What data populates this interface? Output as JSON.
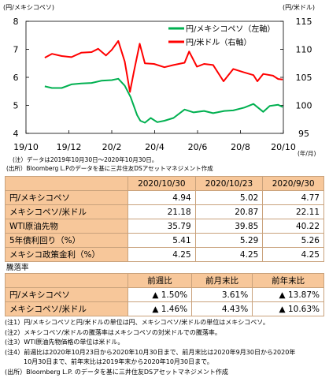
{
  "chart_data": {
    "type": "line",
    "ylabel_left": "(円/メキシコペソ)",
    "ylabel_right": "(円/米ドル)",
    "xlabel": "(年/月)",
    "x_ticks": [
      "19/10",
      "19/12",
      "20/2",
      "20/4",
      "20/6",
      "20/8",
      "20/10"
    ],
    "x_range": [
      "2019-10-01",
      "2020-10-31"
    ],
    "y_left_ticks": [
      "8",
      "7",
      "6",
      "5",
      "4"
    ],
    "y_left_range": [
      4,
      8
    ],
    "y_right_ticks": [
      "115",
      "110",
      "105",
      "100",
      "95"
    ],
    "y_right_range": [
      95,
      115
    ],
    "grid": false,
    "legend": "top-right",
    "series": [
      {
        "name": "円/メキシコペソ（左軸）",
        "axis": "left",
        "color": "#00b050",
        "points": [
          [
            "2019-10-30",
            5.68
          ],
          [
            "2019-11-10",
            5.62
          ],
          [
            "2019-11-25",
            5.62
          ],
          [
            "2019-12-10",
            5.75
          ],
          [
            "2019-12-25",
            5.78
          ],
          [
            "2020-01-10",
            5.8
          ],
          [
            "2020-01-25",
            5.88
          ],
          [
            "2020-02-10",
            5.9
          ],
          [
            "2020-02-20",
            5.95
          ],
          [
            "2020-03-01",
            5.7
          ],
          [
            "2020-03-10",
            5.3
          ],
          [
            "2020-03-20",
            4.65
          ],
          [
            "2020-03-25",
            4.45
          ],
          [
            "2020-04-01",
            4.38
          ],
          [
            "2020-04-10",
            4.55
          ],
          [
            "2020-04-20",
            4.4
          ],
          [
            "2020-05-01",
            4.45
          ],
          [
            "2020-05-15",
            4.55
          ],
          [
            "2020-06-01",
            4.85
          ],
          [
            "2020-06-15",
            4.75
          ],
          [
            "2020-07-01",
            4.8
          ],
          [
            "2020-07-15",
            4.72
          ],
          [
            "2020-08-01",
            4.8
          ],
          [
            "2020-08-15",
            4.82
          ],
          [
            "2020-09-01",
            4.92
          ],
          [
            "2020-09-15",
            5.05
          ],
          [
            "2020-09-30",
            4.77
          ],
          [
            "2020-10-10",
            4.98
          ],
          [
            "2020-10-23",
            5.02
          ],
          [
            "2020-10-30",
            4.94
          ]
        ]
      },
      {
        "name": "円/米ドル（右軸）",
        "axis": "right",
        "color": "#ff0000",
        "points": [
          [
            "2019-10-30",
            108.5
          ],
          [
            "2019-11-10",
            109.2
          ],
          [
            "2019-11-25",
            108.8
          ],
          [
            "2019-12-10",
            108.6
          ],
          [
            "2019-12-25",
            109.4
          ],
          [
            "2020-01-10",
            109.5
          ],
          [
            "2020-01-20",
            110.1
          ],
          [
            "2020-02-01",
            108.9
          ],
          [
            "2020-02-10",
            109.9
          ],
          [
            "2020-02-20",
            111.5
          ],
          [
            "2020-03-01",
            107.8
          ],
          [
            "2020-03-09",
            102.4
          ],
          [
            "2020-03-15",
            106.0
          ],
          [
            "2020-03-24",
            111.0
          ],
          [
            "2020-04-01",
            107.5
          ],
          [
            "2020-04-15",
            107.4
          ],
          [
            "2020-05-01",
            106.8
          ],
          [
            "2020-05-15",
            107.2
          ],
          [
            "2020-06-01",
            107.6
          ],
          [
            "2020-06-08",
            109.6
          ],
          [
            "2020-06-20",
            106.9
          ],
          [
            "2020-07-01",
            107.4
          ],
          [
            "2020-07-15",
            107.2
          ],
          [
            "2020-07-31",
            104.3
          ],
          [
            "2020-08-15",
            106.5
          ],
          [
            "2020-08-31",
            105.9
          ],
          [
            "2020-09-15",
            105.4
          ],
          [
            "2020-09-21",
            104.3
          ],
          [
            "2020-09-30",
            105.6
          ],
          [
            "2020-10-15",
            105.3
          ],
          [
            "2020-10-23",
            104.7
          ],
          [
            "2020-10-30",
            104.6
          ]
        ]
      }
    ]
  },
  "chart_notes": {
    "note": "(注）データは2019年10月30日～2020年10月30日。",
    "source": "(出所）Bloomberg L.Pのデータを基に三井住友DSアセットマネジメント作成"
  },
  "table1": {
    "headers": [
      "",
      "2020/10/30",
      "2020/10/23",
      "2020/9/30"
    ],
    "rows": [
      {
        "label": "円/メキシコペソ",
        "values": [
          "4.94",
          "5.02",
          "4.77"
        ]
      },
      {
        "label": "メキシコペソ/米ドル",
        "values": [
          "21.18",
          "20.87",
          "22.11"
        ]
      },
      {
        "label": "WTI原油先物",
        "values": [
          "35.79",
          "39.85",
          "40.22"
        ]
      },
      {
        "label": "5年債利回り（%）",
        "values": [
          "5.41",
          "5.29",
          "5.26"
        ]
      },
      {
        "label": "メキシコ政策金利（%）",
        "values": [
          "4.25",
          "4.25",
          "4.25"
        ]
      }
    ]
  },
  "section_title": "騰落率",
  "table2": {
    "headers": [
      "",
      "前週比",
      "前月末比",
      "前年末比"
    ],
    "rows": [
      {
        "label": "円/メキシコペソ",
        "values": [
          "▲ 1.50%",
          "3.61%",
          "▲ 13.87%"
        ]
      },
      {
        "label": "メキシコペソ/米ドル",
        "values": [
          "▲ 1.46%",
          "4.43%",
          "▲ 10.63%"
        ]
      }
    ]
  },
  "notes": [
    "(注1）円/メキシコペソと円/米ドルの単位は円、メキシコペソ/米ドルの単位はメキシコペソ。",
    "(注2）メキシコペソ/米ドルの騰落率はメキシコペソの対米ドルでの騰落率。",
    "(注3）WTI原油先物価格の単位は米ドル。",
    "(注4）前週比は2020年10月23日から2020年10月30日まで、前月末比は2020年9月30日から2020年",
    "　　　10月30日まで、前年末比は2019年末から2020年10月30日まで。",
    "(出所）Bloomberg L.P. のデータを基に三井住友DSアセットマネジメント作成"
  ]
}
